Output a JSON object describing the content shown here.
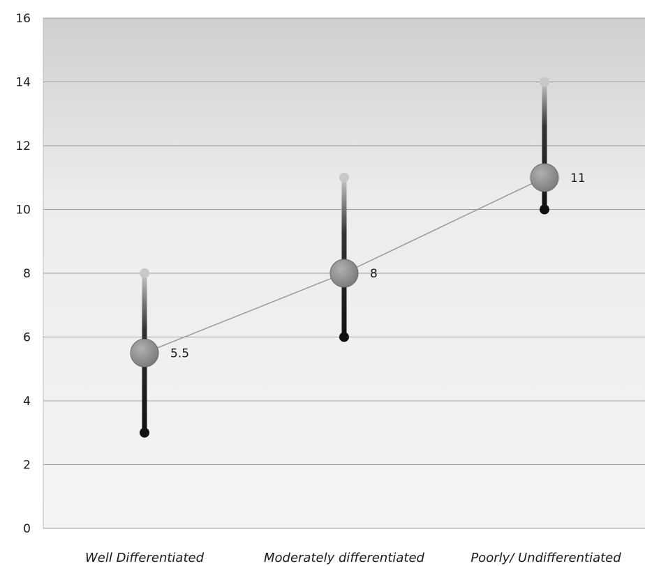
{
  "chart_data": {
    "type": "line",
    "title": "",
    "xlabel": "",
    "ylabel": "",
    "categories": [
      "Well Differentiated",
      "Moderately differentiated",
      "Poorly/ Undifferentiated"
    ],
    "ylim": [
      0,
      16
    ],
    "yticks": [
      0,
      2,
      4,
      6,
      8,
      10,
      12,
      14,
      16
    ],
    "grid": true,
    "legend": "none",
    "series": [
      {
        "values": [
          5.5,
          8,
          11
        ]
      }
    ],
    "ranges": [
      {
        "low": 3,
        "high": 8
      },
      {
        "low": 6,
        "high": 11
      },
      {
        "low": 10,
        "high": 14
      }
    ],
    "data_labels": [
      "5.5",
      "8",
      "11"
    ],
    "colors": {
      "marker": "#7a7a7a",
      "line": "#9a9a9a",
      "range_low": "#111111",
      "range_high": "#c8c8c8",
      "band_top": "#cfcfcf",
      "band_bottom": "#f4f4f4"
    }
  }
}
